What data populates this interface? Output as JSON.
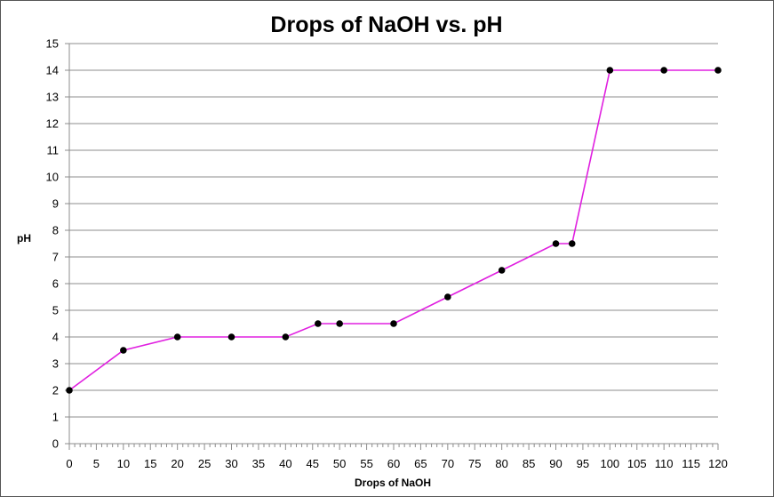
{
  "chart_data": {
    "type": "line",
    "title": "Drops of NaOH vs. pH",
    "xlabel": "Drops of NaOH",
    "ylabel": "pH",
    "xlim": [
      0,
      120
    ],
    "ylim": [
      0,
      15
    ],
    "x_ticks": [
      "0",
      "5",
      "10",
      "15",
      "20",
      "25",
      "30",
      "35",
      "40",
      "45",
      "50",
      "55",
      "60",
      "65",
      "70",
      "75",
      "80",
      "85",
      "90",
      "95",
      "100",
      "105",
      "110",
      "115",
      "120"
    ],
    "y_ticks": [
      "0",
      "1",
      "2",
      "3",
      "4",
      "5",
      "6",
      "7",
      "8",
      "9",
      "10",
      "11",
      "12",
      "13",
      "14",
      "15"
    ],
    "grid": "horizontal",
    "legend": "none",
    "series": [
      {
        "color": "#E020E0",
        "marker_color": "#000000",
        "x": [
          0,
          10,
          20,
          30,
          40,
          46,
          50,
          60,
          70,
          80,
          90,
          93,
          100,
          110,
          120
        ],
        "y": [
          2,
          3.5,
          4,
          4,
          4,
          4.5,
          4.5,
          4.5,
          5.5,
          6.5,
          7.5,
          7.5,
          14,
          14,
          14
        ]
      }
    ]
  }
}
